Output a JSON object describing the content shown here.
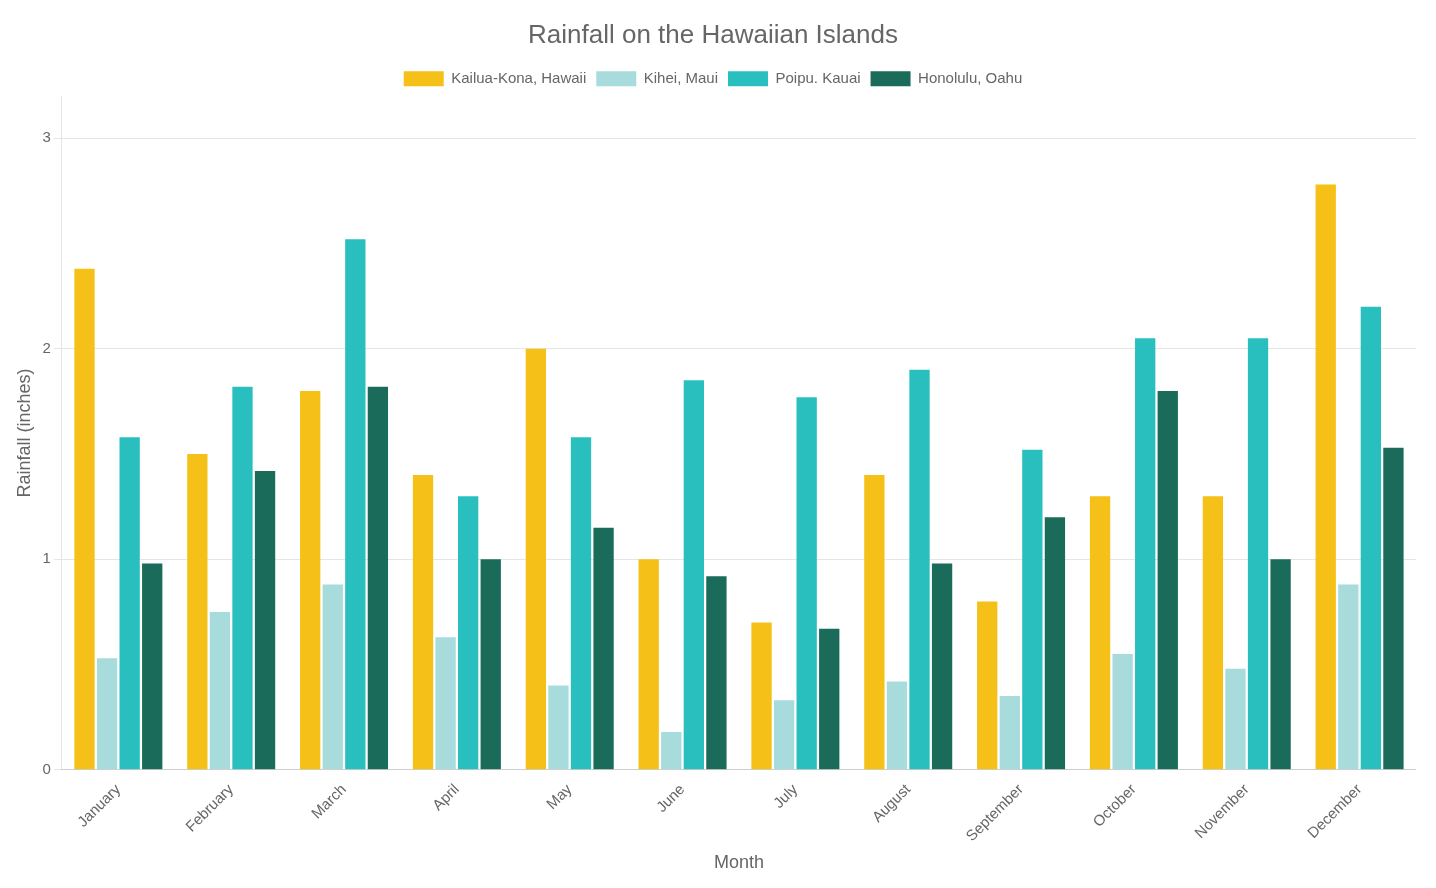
{
  "chart_data": {
    "type": "bar",
    "title": "Rainfall on the Hawaiian Islands",
    "x_label": "Month",
    "y_label": "Rainfall (inches)",
    "categories": [
      "January",
      "February",
      "March",
      "April",
      "May",
      "June",
      "July",
      "August",
      "September",
      "October",
      "November",
      "December"
    ],
    "series": [
      {
        "name": "Kailua-Kona, Hawaii",
        "color": "#F5C118",
        "values": [
          2.38,
          1.5,
          1.8,
          1.4,
          2.0,
          1.0,
          0.7,
          1.4,
          0.8,
          1.3,
          1.3,
          2.78
        ]
      },
      {
        "name": "Kihei, Maui",
        "color": "#A8DCDC",
        "values": [
          0.53,
          0.75,
          0.88,
          0.63,
          0.4,
          0.18,
          0.33,
          0.42,
          0.35,
          0.55,
          0.48,
          0.88
        ]
      },
      {
        "name": "Poipu. Kauai",
        "color": "#2ABFBF",
        "values": [
          1.58,
          1.82,
          2.52,
          1.3,
          1.58,
          1.85,
          1.77,
          1.9,
          1.52,
          2.05,
          2.05,
          2.2
        ]
      },
      {
        "name": "Honolulu, Oahu",
        "color": "#1A6B5A",
        "values": [
          0.98,
          1.42,
          1.82,
          1.0,
          1.15,
          0.92,
          0.67,
          0.98,
          1.2,
          1.8,
          1.0,
          1.53
        ]
      }
    ],
    "ylim": [
      0,
      3.2
    ],
    "yticks": [
      0,
      1,
      2,
      3
    ],
    "grid": true,
    "legend": "top"
  }
}
